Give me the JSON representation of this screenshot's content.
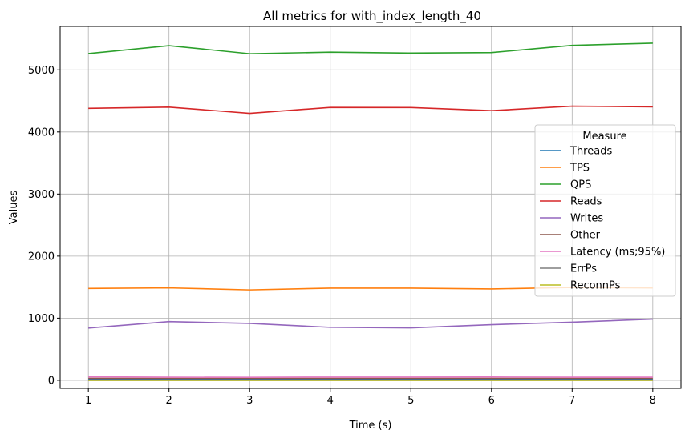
{
  "chart_data": {
    "type": "line",
    "title": "All metrics for with_index_length_40",
    "xlabel": "Time (s)",
    "ylabel": "Values",
    "x": [
      1,
      2,
      3,
      4,
      5,
      6,
      7,
      8
    ],
    "xticks": [
      1,
      2,
      3,
      4,
      5,
      6,
      7,
      8
    ],
    "xlim": [
      0.65,
      8.35
    ],
    "yticks": [
      0,
      1000,
      2000,
      3000,
      4000,
      5000
    ],
    "ylim": [
      -130,
      5700
    ],
    "grid": true,
    "legend": {
      "title": "Measure",
      "placement": "right"
    },
    "series": [
      {
        "name": "Threads",
        "color": "#1f77b4",
        "values": [
          16,
          16,
          16,
          16,
          16,
          16,
          16,
          16
        ]
      },
      {
        "name": "TPS",
        "color": "#ff7f0e",
        "values": [
          1478,
          1487,
          1455,
          1483,
          1483,
          1470,
          1495,
          1486
        ]
      },
      {
        "name": "QPS",
        "color": "#2ca02c",
        "values": [
          5262,
          5390,
          5260,
          5285,
          5270,
          5278,
          5395,
          5430
        ]
      },
      {
        "name": "Reads",
        "color": "#d62728",
        "values": [
          4380,
          4400,
          4300,
          4395,
          4393,
          4343,
          4416,
          4405
        ]
      },
      {
        "name": "Writes",
        "color": "#9467bd",
        "values": [
          840,
          945,
          915,
          852,
          843,
          895,
          935,
          985
        ]
      },
      {
        "name": "Other",
        "color": "#8c564b",
        "values": [
          30,
          30,
          30,
          30,
          30,
          30,
          30,
          30
        ]
      },
      {
        "name": "Latency (ms;95%)",
        "color": "#e377c2",
        "values": [
          55,
          50,
          48,
          52,
          52,
          53,
          50,
          50
        ]
      },
      {
        "name": "ErrPs",
        "color": "#7f7f7f",
        "values": [
          0,
          0,
          0,
          0,
          0,
          0,
          0,
          0
        ]
      },
      {
        "name": "ReconnPs",
        "color": "#bcbd22",
        "values": [
          0,
          0,
          0,
          0,
          0,
          0,
          0,
          0
        ]
      }
    ]
  }
}
